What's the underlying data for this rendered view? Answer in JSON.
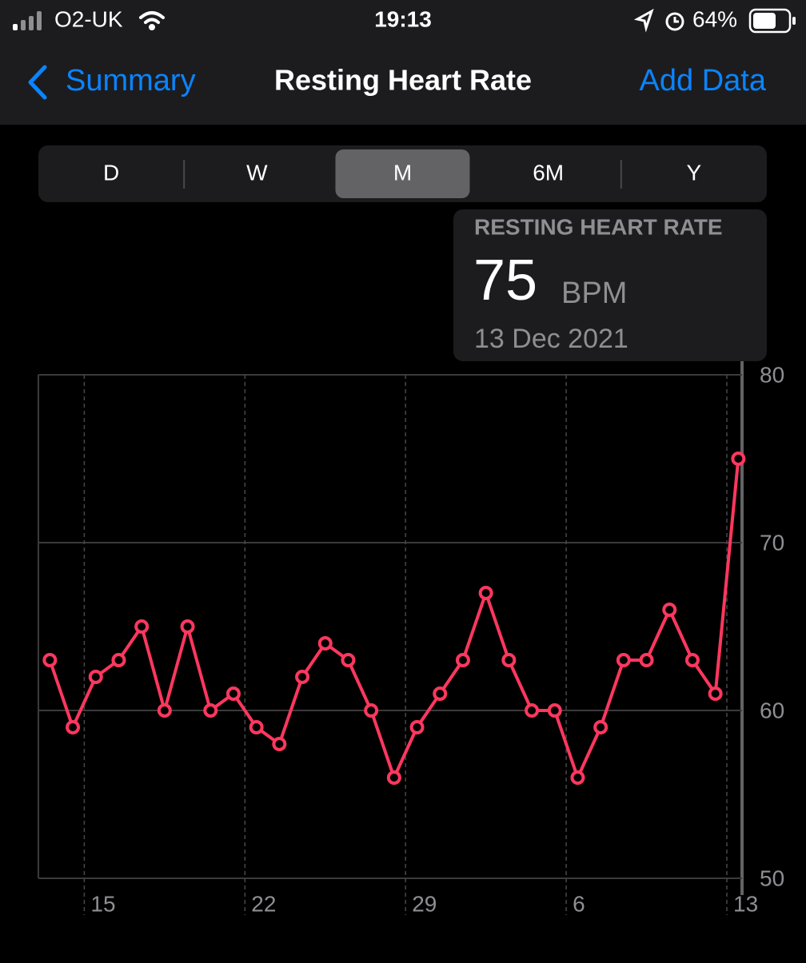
{
  "status_bar": {
    "carrier": "O2-UK",
    "time": "19:13",
    "battery": "64%"
  },
  "nav": {
    "back": "Summary",
    "title": "Resting Heart Rate",
    "action": "Add Data"
  },
  "segments": {
    "items": [
      "D",
      "W",
      "M",
      "6M",
      "Y"
    ],
    "selected": "M"
  },
  "tooltip": {
    "label": "RESTING HEART RATE",
    "value": 75,
    "unit": "BPM",
    "date": "13 Dec 2021"
  },
  "chart_data": {
    "type": "line",
    "categories": [
      null,
      null,
      "15",
      null,
      null,
      null,
      null,
      null,
      null,
      "22",
      null,
      null,
      null,
      null,
      null,
      null,
      "29",
      null,
      null,
      null,
      null,
      null,
      null,
      "6",
      null,
      null,
      null,
      null,
      null,
      null,
      "13"
    ],
    "series": [
      {
        "name": "Resting Heart Rate",
        "color": "#ff375f",
        "values": [
          63,
          59,
          62,
          63,
          65,
          60,
          65,
          60,
          61,
          59,
          58,
          62,
          64,
          63,
          60,
          56,
          59,
          61,
          63,
          67,
          63,
          60,
          60,
          56,
          59,
          63,
          63,
          66,
          63,
          61,
          75
        ]
      }
    ],
    "ylim": [
      50,
      80
    ],
    "yticks": [
      50,
      60,
      70,
      80
    ],
    "grid": true
  }
}
